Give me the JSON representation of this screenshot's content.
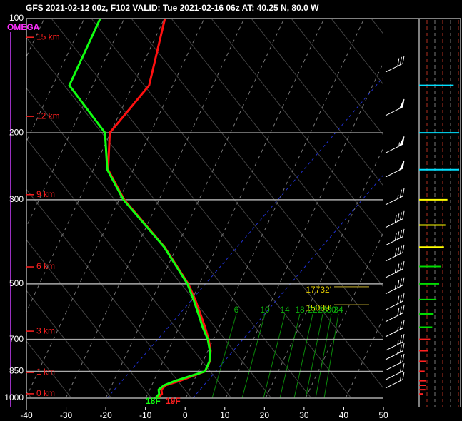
{
  "chart_data": {
    "type": "skewt",
    "title": "GFS 2021-02-12 00z, F102  VALID: Tue 2021-02-16 06z  AT: 40.25 N, 80.0 W",
    "xlim": [
      -40,
      50
    ],
    "xticks": [
      -40,
      -30,
      -20,
      -10,
      0,
      10,
      20,
      30,
      40,
      50
    ],
    "ylim": [
      100,
      1000
    ],
    "log_scale": true,
    "yticks": [
      100,
      200,
      300,
      500,
      700,
      850,
      1000
    ],
    "grid": true,
    "pressures": [
      100,
      150,
      200,
      250,
      300,
      400,
      500,
      550,
      600,
      650,
      700,
      750,
      800,
      850,
      900,
      925,
      950,
      975,
      1000
    ],
    "series": [
      {
        "color": "#ff1010",
        "values": [
          -54.9,
          -50.1,
          -53.8,
          -49.4,
          -41.4,
          -25.0,
          -14.2,
          -10.4,
          -7.2,
          -4.3,
          -1.8,
          0.2,
          1.4,
          1.5,
          -3.6,
          -6.6,
          -7.1,
          -6.4,
          -7.0
        ]
      },
      {
        "color": "#10ff10",
        "values": [
          -71.2,
          -70.2,
          -55.0,
          -49.6,
          -41.6,
          -25.1,
          -14.4,
          -10.8,
          -7.7,
          -4.9,
          -2.0,
          0.0,
          1.3,
          1.5,
          -4.7,
          -7.0,
          -7.8,
          -7.1,
          -7.5
        ]
      }
    ],
    "omega_label": "OMEGA",
    "height_labels": [
      {
        "label": "15 km",
        "pressure": 112
      },
      {
        "label": "12 km",
        "pressure": 181
      },
      {
        "label": "9 km",
        "pressure": 291
      },
      {
        "label": "6 km",
        "pressure": 451
      },
      {
        "label": "3 km",
        "pressure": 666
      },
      {
        "label": "1 km",
        "pressure": 856
      },
      {
        "label": "0 km",
        "pressure": 974
      }
    ],
    "annotations": [
      {
        "text": "17732'",
        "pressure": 520,
        "color": "#e8d000"
      },
      {
        "text": "15039'",
        "pressure": 580,
        "color": "#e8e800"
      }
    ],
    "surface_labels": [
      {
        "text": "18F",
        "color": "#10ff10"
      },
      {
        "text": "19F",
        "color": "#ff2020"
      }
    ],
    "mixing_ratio_labels": [
      6,
      10,
      14,
      18,
      22,
      26,
      30,
      34
    ],
    "wind": {
      "pressures": [
        136,
        177,
        222,
        257,
        304,
        349,
        389,
        428,
        473,
        522,
        575,
        618,
        677,
        736,
        778,
        830,
        879,
        925
      ],
      "speeds": [
        30,
        50,
        55,
        50,
        25,
        40,
        40,
        40,
        35,
        35,
        30,
        30,
        25,
        25,
        25,
        20,
        15,
        15
      ]
    },
    "right_panel": {
      "xlim": [
        0,
        60
      ],
      "pressures": [
        150,
        200,
        250,
        300,
        350,
        400,
        450,
        500,
        550,
        600,
        650,
        700,
        750,
        800,
        850,
        900,
        925,
        950,
        975
      ],
      "values": [
        50,
        58,
        58,
        41,
        38,
        36,
        32,
        29,
        25,
        21,
        19,
        16,
        13,
        10,
        8,
        10,
        10,
        9,
        6
      ],
      "colors": [
        "#00e0ff",
        "#00e0ff",
        "#00e0ff",
        "#ffff00",
        "#ffff00",
        "#ffff00",
        "#00dd00",
        "#00dd00",
        "#00dd00",
        "#00dd00",
        "#00dd00",
        "#ff2020",
        "#ff2020",
        "#ff2020",
        "#ff2020",
        "#ff2020",
        "#ff2020",
        "#ff2020",
        "#ff2020"
      ]
    }
  }
}
